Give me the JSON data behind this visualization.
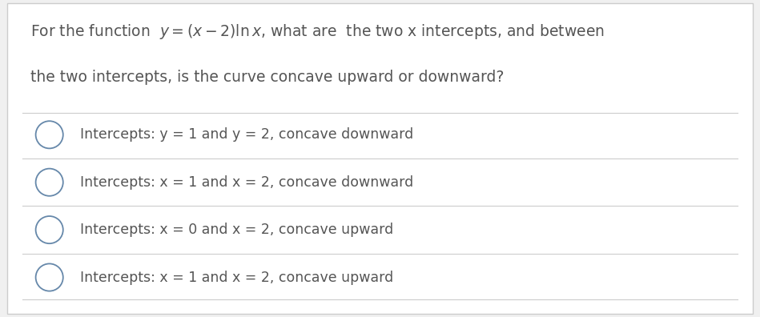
{
  "background_color": "#f0f0f0",
  "card_color": "#ffffff",
  "text_color": "#555555",
  "question_line1": "For the function  $y = (x - 2)\\ln x$, what are  the two x intercepts, and between",
  "question_line2": "the two intercepts, is the curve concave upward or downward?",
  "options": [
    "Intercepts: y = 1 and y = 2, concave downward",
    "Intercepts: x = 1 and x = 2, concave downward",
    "Intercepts: x = 0 and x = 2, concave upward",
    "Intercepts: x = 1 and x = 2, concave upward"
  ],
  "divider_color": "#cccccc",
  "font_size_question": 13.5,
  "font_size_option": 12.5,
  "circle_color": "#6688aa"
}
